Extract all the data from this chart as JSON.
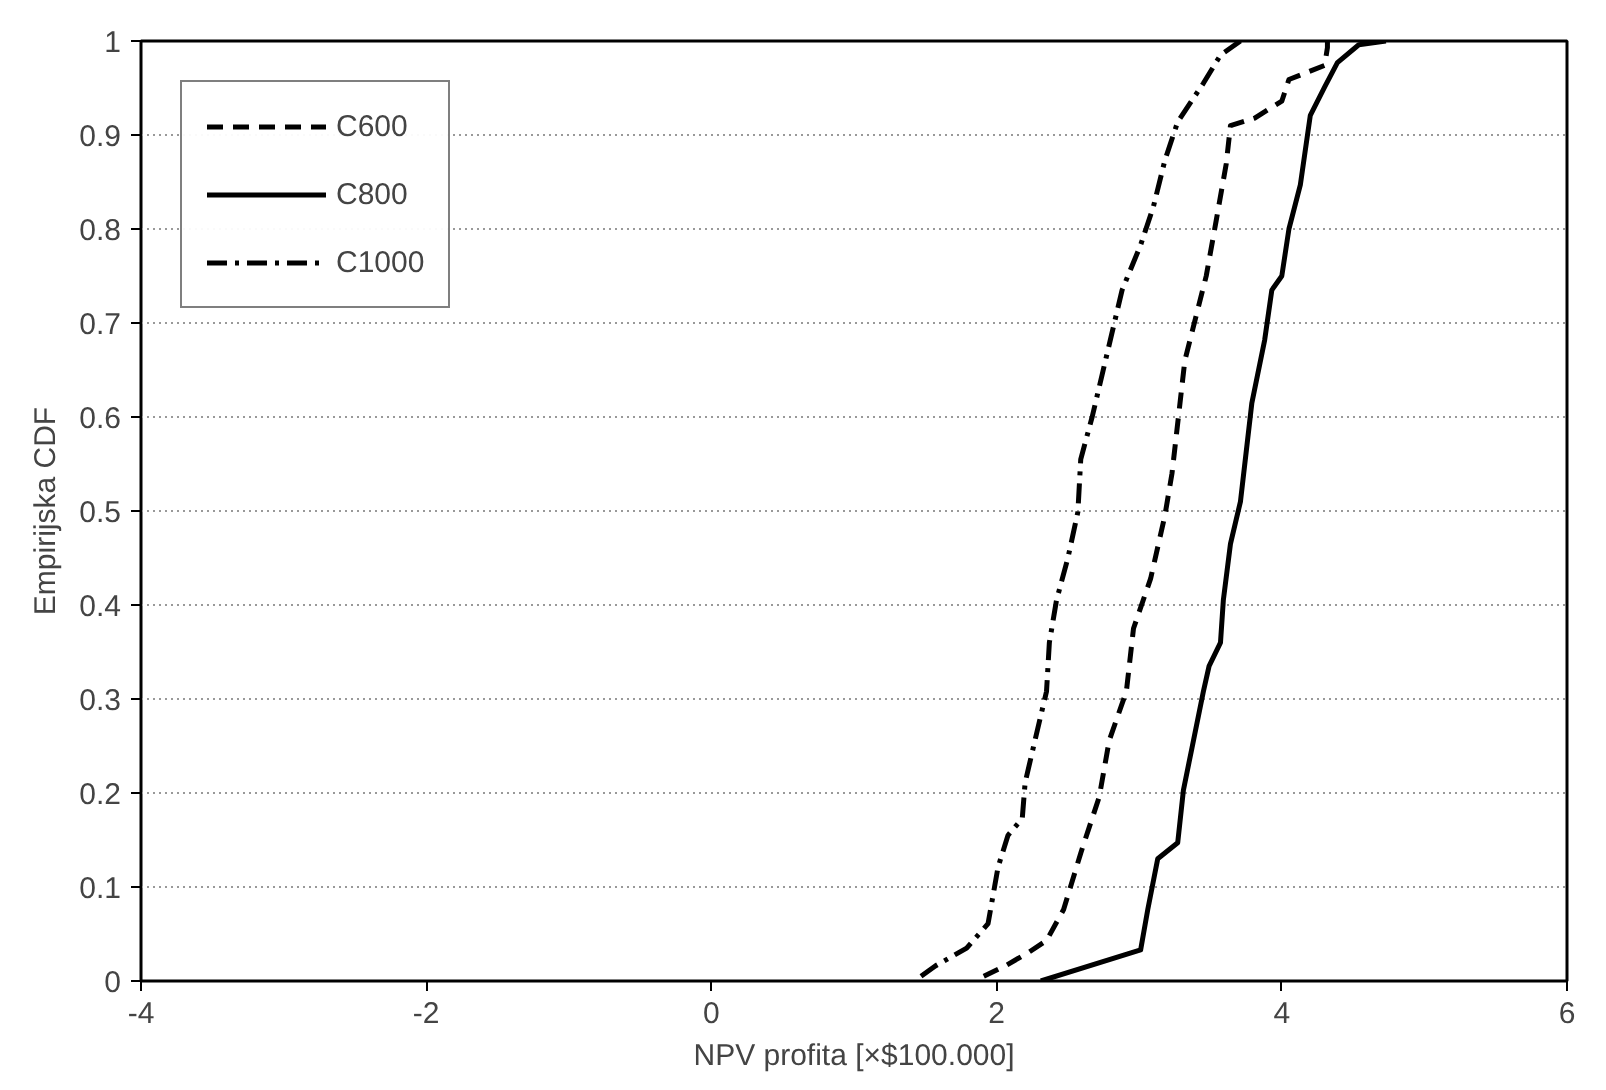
{
  "chart_data": {
    "type": "line",
    "xlabel": "NPV profita [×$100.000]",
    "ylabel": "Empirijska CDF",
    "xlim": [
      -4,
      6
    ],
    "ylim": [
      0,
      1
    ],
    "xticks": [
      -4,
      -2,
      0,
      2,
      4,
      6
    ],
    "yticks": [
      0,
      0.1,
      0.2,
      0.3,
      0.4,
      0.5,
      0.6,
      0.7,
      0.8,
      0.9,
      1
    ],
    "grid": "y",
    "legend": "top left",
    "marker": "none",
    "series": [
      {
        "name": "C600",
        "color": "#000000",
        "line_style": "dashed",
        "x": [
          1.91,
          2.06,
          2.23,
          2.35,
          2.47,
          2.59,
          2.72,
          2.79,
          2.91,
          2.96,
          3.08,
          3.18,
          3.23,
          3.32,
          3.47,
          3.54,
          3.61,
          3.64,
          3.81,
          4.0,
          4.05,
          4.3,
          4.32,
          4.32
        ],
        "values": [
          0.005,
          0.016,
          0.031,
          0.043,
          0.076,
          0.136,
          0.196,
          0.256,
          0.308,
          0.375,
          0.428,
          0.495,
          0.54,
          0.66,
          0.75,
          0.809,
          0.869,
          0.91,
          0.918,
          0.936,
          0.959,
          0.974,
          0.993,
          1
        ]
      },
      {
        "name": "C800",
        "color": "#000000",
        "line_style": "solid",
        "x": [
          2.31,
          3.01,
          3.06,
          3.13,
          3.27,
          3.31,
          3.37,
          3.45,
          3.49,
          3.57,
          3.59,
          3.64,
          3.71,
          3.79,
          3.88,
          3.93,
          4.0,
          4.05,
          4.13,
          4.2,
          4.3,
          4.39,
          4.54,
          4.73
        ],
        "values": [
          0,
          0.033,
          0.076,
          0.13,
          0.147,
          0.203,
          0.248,
          0.308,
          0.335,
          0.36,
          0.405,
          0.465,
          0.51,
          0.615,
          0.682,
          0.735,
          0.75,
          0.8,
          0.847,
          0.921,
          0.951,
          0.977,
          0.996,
          1
        ]
      },
      {
        "name": "C1000",
        "color": "#000000",
        "line_style": "dashdot",
        "x": [
          1.47,
          1.57,
          1.79,
          1.94,
          2.01,
          2.08,
          2.18,
          2.2,
          2.28,
          2.35,
          2.37,
          2.42,
          2.5,
          2.57,
          2.59,
          2.67,
          2.74,
          2.81,
          2.88,
          3.01,
          3.1,
          3.18,
          3.27,
          3.45,
          3.57,
          3.71
        ],
        "values": [
          0.005,
          0.016,
          0.035,
          0.061,
          0.121,
          0.155,
          0.173,
          0.211,
          0.263,
          0.308,
          0.36,
          0.405,
          0.45,
          0.499,
          0.555,
          0.6,
          0.645,
          0.69,
          0.735,
          0.783,
          0.824,
          0.873,
          0.914,
          0.955,
          0.985,
          1
        ]
      }
    ]
  }
}
